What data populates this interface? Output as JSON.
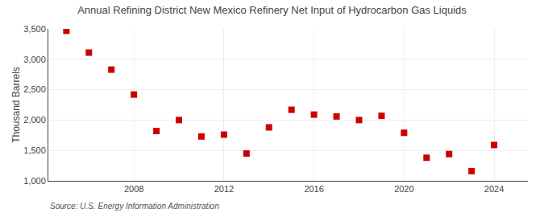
{
  "chart_data": {
    "type": "scatter",
    "title": "Annual Refining District New Mexico Refinery Net Input of Hydrocarbon Gas Liquids",
    "ylabel": "Thousand Barrels",
    "source": "Source: U.S. Energy Information Administration",
    "x": [
      2005,
      2006,
      2007,
      2008,
      2009,
      2010,
      2011,
      2012,
      2013,
      2014,
      2015,
      2016,
      2017,
      2018,
      2019,
      2020,
      2021,
      2022,
      2023,
      2024
    ],
    "values": [
      3470,
      3110,
      2830,
      2420,
      1820,
      2000,
      1730,
      1760,
      1450,
      1880,
      2170,
      2090,
      2060,
      2000,
      2070,
      1790,
      1380,
      1440,
      1160,
      1590
    ],
    "xlim": [
      2004.2,
      2025.5
    ],
    "xticks": [
      2008,
      2012,
      2016,
      2020,
      2024
    ],
    "ylim": [
      1000,
      3500
    ],
    "yticks": [
      {
        "value": 1000,
        "label": "1,000"
      },
      {
        "value": 1500,
        "label": "1,500"
      },
      {
        "value": 2000,
        "label": "2,000"
      },
      {
        "value": 2500,
        "label": "2,500"
      },
      {
        "value": 3000,
        "label": "3,000"
      },
      {
        "value": 3500,
        "label": "3,500"
      }
    ],
    "color": "#cc0000",
    "marker": "square",
    "grid": true
  }
}
